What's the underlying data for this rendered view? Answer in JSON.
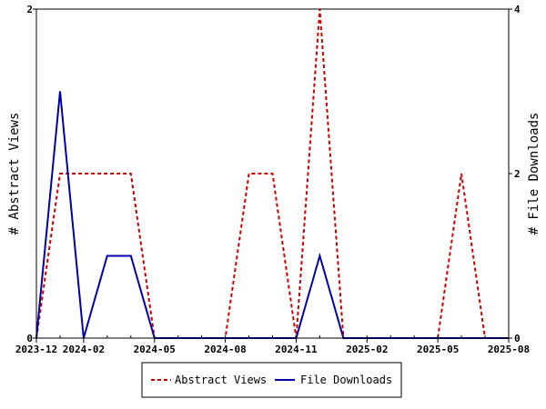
{
  "chart_data": {
    "type": "line",
    "title": "",
    "x_tick_labels": [
      "2023-12",
      "2024-02",
      "2024-05",
      "2024-08",
      "2024-11",
      "2025-02",
      "2025-05",
      "2025-08"
    ],
    "left_axis": {
      "label": "# Abstract Views",
      "ylim": [
        0,
        2
      ],
      "ticks": [
        "0",
        "2"
      ]
    },
    "right_axis": {
      "label": "# File Downloads",
      "ylim": [
        0,
        4
      ],
      "ticks": [
        "0",
        "2",
        "4"
      ]
    },
    "xlim": [
      "2023-12",
      "2025-08"
    ],
    "grid": false,
    "legend_position": "bottom-center",
    "series": [
      {
        "name": "Abstract Views",
        "axis": "left",
        "color": "#cc0000",
        "style": "dashed",
        "x": [
          "2023-12",
          "2024-01",
          "2024-02",
          "2024-03",
          "2024-04",
          "2024-05",
          "2024-06",
          "2024-07",
          "2024-08",
          "2024-09",
          "2024-10",
          "2024-11",
          "2024-12",
          "2025-01",
          "2025-02",
          "2025-03",
          "2025-04",
          "2025-05",
          "2025-06",
          "2025-07",
          "2025-08"
        ],
        "values": [
          0,
          1,
          1,
          1,
          1,
          0,
          0,
          0,
          0,
          1,
          1,
          0,
          2,
          0,
          0,
          0,
          0,
          0,
          1,
          0,
          0
        ]
      },
      {
        "name": "File Downloads",
        "axis": "right",
        "color": "#0000aa",
        "style": "solid",
        "x": [
          "2023-12",
          "2024-01",
          "2024-02",
          "2024-03",
          "2024-04",
          "2024-05",
          "2024-06",
          "2024-07",
          "2024-08",
          "2024-09",
          "2024-10",
          "2024-11",
          "2024-12",
          "2025-01",
          "2025-02",
          "2025-03",
          "2025-04",
          "2025-05",
          "2025-06",
          "2025-07",
          "2025-08"
        ],
        "values": [
          0,
          3,
          0,
          1,
          1,
          0,
          0,
          0,
          0,
          0,
          0,
          0,
          1,
          0,
          0,
          0,
          0,
          0,
          0,
          0,
          0
        ]
      }
    ]
  }
}
